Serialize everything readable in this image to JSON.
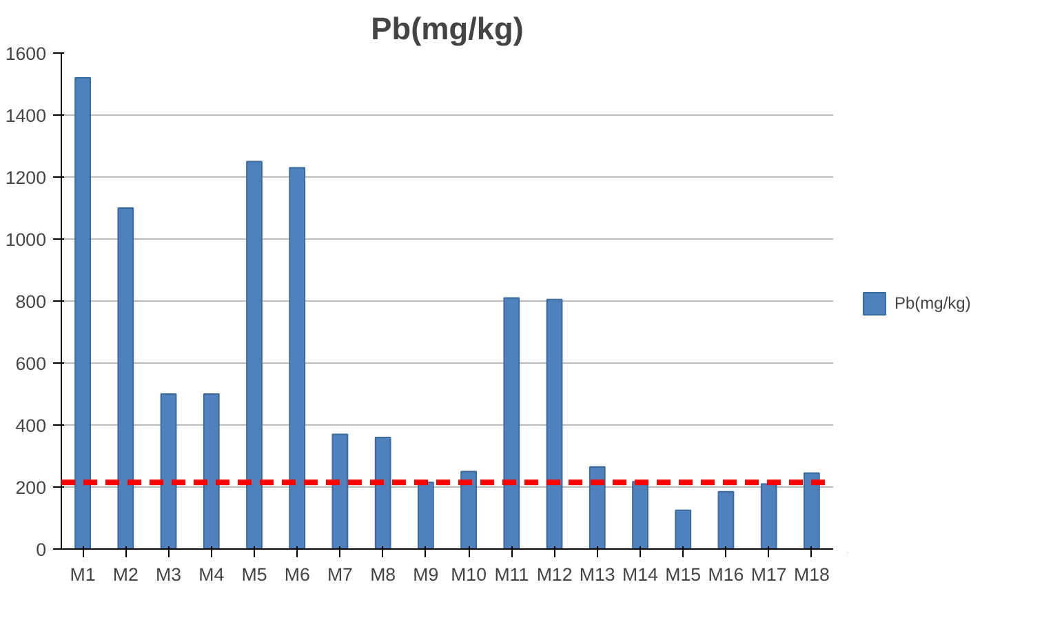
{
  "chart_data": {
    "type": "bar",
    "title": "Pb(mg/kg)",
    "categories": [
      "M1",
      "M2",
      "M3",
      "M4",
      "M5",
      "M6",
      "M7",
      "M8",
      "M9",
      "M10",
      "M11",
      "M12",
      "M13",
      "M14",
      "M15",
      "M16",
      "M17",
      "M18"
    ],
    "series": [
      {
        "name": "Pb(mg/kg)",
        "color": "#4f81bd",
        "values": [
          1520,
          1100,
          500,
          500,
          1250,
          1230,
          370,
          360,
          215,
          250,
          810,
          805,
          265,
          217,
          125,
          185,
          210,
          245
        ]
      }
    ],
    "ylim": [
      0,
      1600
    ],
    "yticks": [
      0,
      200,
      400,
      600,
      800,
      1000,
      1200,
      1400,
      1600
    ],
    "grid": "y",
    "legend": "right",
    "ref_lines": [
      {
        "axis": "y",
        "value": 215,
        "color": "#ff0000",
        "line_style": "dashed"
      }
    ]
  }
}
